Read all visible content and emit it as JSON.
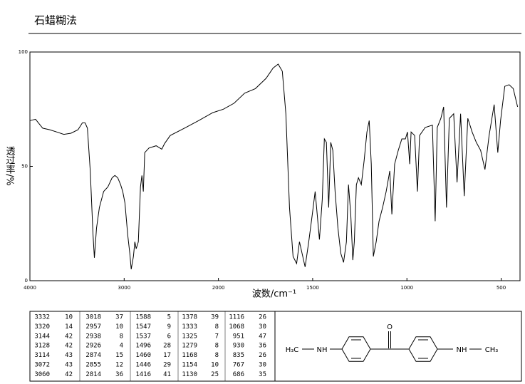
{
  "chart_data": {
    "type": "line",
    "title": "石蜡糊法",
    "x_label": "波数/cm⁻¹",
    "y_label": "透过率/%",
    "xlim": [
      4000,
      400
    ],
    "x_break": 2000,
    "ylim": [
      0,
      100
    ],
    "xticks": [
      4000,
      3000,
      2000,
      1500,
      1000,
      500
    ],
    "yticks": [
      0,
      50,
      100
    ],
    "color": "#000000",
    "x": [
      4000,
      3940,
      3865,
      3790,
      3714,
      3640,
      3564,
      3490,
      3444,
      3414,
      3390,
      3360,
      3330,
      3316,
      3293,
      3263,
      3218,
      3173,
      3128,
      3098,
      3068,
      3038,
      3015,
      2992,
      2962,
      2940,
      2925,
      2902,
      2887,
      2872,
      2850,
      2827,
      2812,
      2797,
      2782,
      2737,
      2661,
      2601,
      2571,
      2511,
      2361,
      2210,
      2060,
      1974,
      1917,
      1861,
      1804,
      1747,
      1710,
      1683,
      1661,
      1642,
      1623,
      1604,
      1585,
      1570,
      1559,
      1540,
      1521,
      1502,
      1487,
      1476,
      1464,
      1449,
      1438,
      1427,
      1415,
      1404,
      1393,
      1381,
      1366,
      1351,
      1336,
      1321,
      1310,
      1298,
      1287,
      1279,
      1268,
      1257,
      1242,
      1227,
      1212,
      1200,
      1189,
      1178,
      1163,
      1148,
      1129,
      1110,
      1091,
      1080,
      1065,
      1046,
      1027,
      1008,
      997,
      985,
      978,
      959,
      944,
      933,
      903,
      865,
      850,
      839,
      820,
      805,
      790,
      775,
      752,
      734,
      715,
      696,
      677,
      654,
      632,
      609,
      586,
      564,
      537,
      518,
      503,
      481,
      458,
      436,
      413
    ],
    "values": [
      70,
      70.6,
      66.7,
      66,
      65,
      64,
      64.5,
      66,
      69,
      69,
      66.7,
      48,
      20,
      10,
      23,
      32,
      39,
      41,
      45,
      46,
      45,
      42,
      39,
      34,
      20,
      12,
      5,
      10.6,
      17,
      14,
      17,
      41,
      46,
      39,
      56,
      58,
      59,
      57.5,
      60,
      63.5,
      66.7,
      70,
      73.5,
      75,
      77.6,
      82,
      84,
      88.5,
      93,
      94.7,
      91.6,
      73,
      32,
      10.6,
      7.5,
      17,
      13,
      6,
      17,
      29,
      39,
      29,
      18,
      35.5,
      62,
      60.5,
      32,
      60.5,
      57,
      39,
      23,
      12,
      8,
      17,
      42,
      29,
      9,
      17,
      42,
      45,
      42,
      52.6,
      65,
      70,
      51,
      10.6,
      17,
      26,
      32,
      39,
      48,
      29,
      51,
      57,
      62,
      62,
      65,
      51,
      65,
      63.5,
      39,
      63.5,
      67,
      68,
      26,
      67,
      71,
      76,
      32,
      71,
      73,
      43,
      73,
      37,
      71,
      65,
      60.5,
      57,
      48.6,
      63.5,
      77,
      56,
      70,
      85,
      85.7,
      84,
      76
    ]
  },
  "table": {
    "rows": [
      [
        3332,
        10,
        3018,
        37,
        1588,
        5,
        1378,
        39,
        1116,
        26
      ],
      [
        3320,
        14,
        2957,
        10,
        1547,
        9,
        1333,
        8,
        1068,
        30
      ],
      [
        3144,
        42,
        2938,
        8,
        1537,
        6,
        1325,
        7,
        951,
        47
      ],
      [
        3128,
        42,
        2926,
        4,
        1496,
        28,
        1279,
        8,
        930,
        36
      ],
      [
        3114,
        43,
        2874,
        15,
        1460,
        17,
        1168,
        8,
        835,
        26
      ],
      [
        3072,
        43,
        2855,
        12,
        1446,
        29,
        1154,
        10,
        767,
        30
      ],
      [
        3060,
        42,
        2814,
        36,
        1416,
        41,
        1130,
        25,
        686,
        35
      ]
    ]
  },
  "structure": {
    "labels": [
      "H₃C",
      "NH",
      "O",
      "NH",
      "CH₃"
    ]
  }
}
